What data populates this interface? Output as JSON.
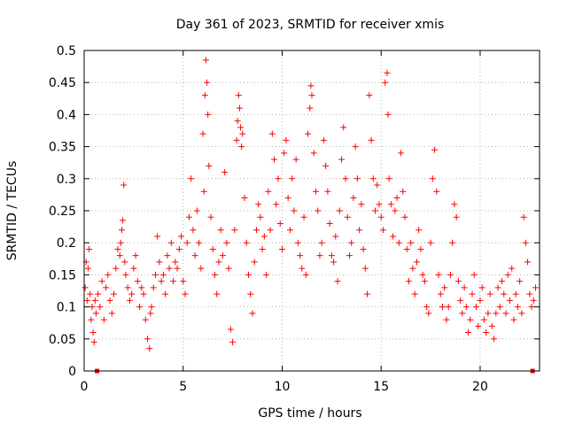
{
  "chart_data": {
    "type": "scatter",
    "title": "Day 361 of 2023, SRMTID for receiver xmis",
    "xlabel": "GPS time / hours",
    "ylabel": "SRMTID / TECUs",
    "xlim": [
      0,
      23
    ],
    "ylim": [
      0,
      0.5
    ],
    "xticks": [
      0,
      5,
      10,
      15,
      20
    ],
    "yticks": [
      0,
      0.05,
      0.1,
      0.15,
      0.2,
      0.25,
      0.3,
      0.35,
      0.4,
      0.45,
      0.5
    ],
    "xtick_labels": [
      "0",
      "5",
      "10",
      "15",
      "20"
    ],
    "ytick_labels": [
      "0",
      "0.05",
      "0.1",
      "0.15",
      "0.2",
      "0.25",
      "0.3",
      "0.35",
      "0.4",
      "0.45",
      "0.5"
    ],
    "grid": true,
    "marker": "plus",
    "series_color": "#ff0000",
    "baseline_markers": {
      "style": "filled-square",
      "points": [
        [
          0.65,
          0
        ],
        [
          22.65,
          0
        ]
      ]
    },
    "series": [
      {
        "name": "SRMTID",
        "points": [
          [
            0.05,
            0.13
          ],
          [
            0.1,
            0.17
          ],
          [
            0.15,
            0.11
          ],
          [
            0.2,
            0.16
          ],
          [
            0.25,
            0.19
          ],
          [
            0.3,
            0.12
          ],
          [
            0.35,
            0.08
          ],
          [
            0.4,
            0.1
          ],
          [
            0.45,
            0.06
          ],
          [
            0.5,
            0.045
          ],
          [
            0.55,
            0.11
          ],
          [
            0.6,
            0.09
          ],
          [
            0.7,
            0.12
          ],
          [
            0.8,
            0.1
          ],
          [
            0.9,
            0.14
          ],
          [
            1.0,
            0.08
          ],
          [
            1.1,
            0.13
          ],
          [
            1.2,
            0.15
          ],
          [
            1.3,
            0.11
          ],
          [
            1.4,
            0.09
          ],
          [
            1.5,
            0.12
          ],
          [
            1.6,
            0.16
          ],
          [
            1.7,
            0.19
          ],
          [
            1.8,
            0.18
          ],
          [
            1.85,
            0.2
          ],
          [
            1.9,
            0.22
          ],
          [
            1.95,
            0.235
          ],
          [
            2.0,
            0.29
          ],
          [
            2.05,
            0.17
          ],
          [
            2.1,
            0.15
          ],
          [
            2.2,
            0.13
          ],
          [
            2.3,
            0.11
          ],
          [
            2.4,
            0.12
          ],
          [
            2.5,
            0.16
          ],
          [
            2.6,
            0.18
          ],
          [
            2.7,
            0.14
          ],
          [
            2.8,
            0.1
          ],
          [
            2.9,
            0.13
          ],
          [
            3.0,
            0.12
          ],
          [
            3.1,
            0.08
          ],
          [
            3.2,
            0.05
          ],
          [
            3.3,
            0.035
          ],
          [
            3.35,
            0.09
          ],
          [
            3.4,
            0.1
          ],
          [
            3.5,
            0.13
          ],
          [
            3.6,
            0.15
          ],
          [
            3.7,
            0.21
          ],
          [
            3.8,
            0.17
          ],
          [
            3.9,
            0.14
          ],
          [
            4.0,
            0.15
          ],
          [
            4.1,
            0.12
          ],
          [
            4.2,
            0.18
          ],
          [
            4.3,
            0.16
          ],
          [
            4.4,
            0.2
          ],
          [
            4.5,
            0.14
          ],
          [
            4.6,
            0.17
          ],
          [
            4.7,
            0.16
          ],
          [
            4.8,
            0.19
          ],
          [
            4.9,
            0.21
          ],
          [
            5.0,
            0.14
          ],
          [
            5.1,
            0.12
          ],
          [
            5.2,
            0.2
          ],
          [
            5.3,
            0.24
          ],
          [
            5.4,
            0.3
          ],
          [
            5.5,
            0.22
          ],
          [
            5.6,
            0.18
          ],
          [
            5.7,
            0.25
          ],
          [
            5.8,
            0.2
          ],
          [
            5.9,
            0.16
          ],
          [
            6.0,
            0.37
          ],
          [
            6.05,
            0.28
          ],
          [
            6.1,
            0.43
          ],
          [
            6.15,
            0.485
          ],
          [
            6.2,
            0.45
          ],
          [
            6.25,
            0.4
          ],
          [
            6.3,
            0.32
          ],
          [
            6.4,
            0.24
          ],
          [
            6.5,
            0.19
          ],
          [
            6.6,
            0.15
          ],
          [
            6.7,
            0.12
          ],
          [
            6.8,
            0.17
          ],
          [
            6.9,
            0.22
          ],
          [
            7.0,
            0.18
          ],
          [
            7.1,
            0.31
          ],
          [
            7.2,
            0.2
          ],
          [
            7.3,
            0.16
          ],
          [
            7.4,
            0.065
          ],
          [
            7.5,
            0.045
          ],
          [
            7.6,
            0.22
          ],
          [
            7.7,
            0.36
          ],
          [
            7.75,
            0.39
          ],
          [
            7.8,
            0.43
          ],
          [
            7.85,
            0.41
          ],
          [
            7.9,
            0.38
          ],
          [
            7.95,
            0.35
          ],
          [
            8.0,
            0.37
          ],
          [
            8.1,
            0.27
          ],
          [
            8.2,
            0.2
          ],
          [
            8.3,
            0.15
          ],
          [
            8.4,
            0.12
          ],
          [
            8.5,
            0.09
          ],
          [
            8.6,
            0.17
          ],
          [
            8.7,
            0.22
          ],
          [
            8.8,
            0.26
          ],
          [
            8.9,
            0.24
          ],
          [
            9.0,
            0.19
          ],
          [
            9.1,
            0.21
          ],
          [
            9.2,
            0.15
          ],
          [
            9.3,
            0.28
          ],
          [
            9.4,
            0.22
          ],
          [
            9.5,
            0.37
          ],
          [
            9.6,
            0.33
          ],
          [
            9.7,
            0.26
          ],
          [
            9.8,
            0.3
          ],
          [
            9.9,
            0.23
          ],
          [
            10.0,
            0.19
          ],
          [
            10.1,
            0.34
          ],
          [
            10.2,
            0.36
          ],
          [
            10.3,
            0.27
          ],
          [
            10.4,
            0.22
          ],
          [
            10.5,
            0.3
          ],
          [
            10.6,
            0.25
          ],
          [
            10.7,
            0.33
          ],
          [
            10.8,
            0.2
          ],
          [
            10.9,
            0.18
          ],
          [
            11.0,
            0.16
          ],
          [
            11.1,
            0.24
          ],
          [
            11.2,
            0.15
          ],
          [
            11.3,
            0.37
          ],
          [
            11.4,
            0.41
          ],
          [
            11.45,
            0.445
          ],
          [
            11.5,
            0.43
          ],
          [
            11.6,
            0.34
          ],
          [
            11.7,
            0.28
          ],
          [
            11.8,
            0.25
          ],
          [
            11.9,
            0.18
          ],
          [
            12.0,
            0.2
          ],
          [
            12.1,
            0.36
          ],
          [
            12.2,
            0.32
          ],
          [
            12.3,
            0.28
          ],
          [
            12.4,
            0.23
          ],
          [
            12.5,
            0.18
          ],
          [
            12.6,
            0.17
          ],
          [
            12.7,
            0.21
          ],
          [
            12.8,
            0.14
          ],
          [
            12.9,
            0.25
          ],
          [
            13.0,
            0.33
          ],
          [
            13.1,
            0.38
          ],
          [
            13.2,
            0.3
          ],
          [
            13.3,
            0.24
          ],
          [
            13.4,
            0.18
          ],
          [
            13.5,
            0.2
          ],
          [
            13.6,
            0.27
          ],
          [
            13.7,
            0.35
          ],
          [
            13.8,
            0.3
          ],
          [
            13.9,
            0.22
          ],
          [
            14.0,
            0.26
          ],
          [
            14.1,
            0.19
          ],
          [
            14.2,
            0.16
          ],
          [
            14.3,
            0.12
          ],
          [
            14.4,
            0.43
          ],
          [
            14.5,
            0.36
          ],
          [
            14.6,
            0.3
          ],
          [
            14.7,
            0.25
          ],
          [
            14.8,
            0.29
          ],
          [
            14.9,
            0.26
          ],
          [
            15.0,
            0.24
          ],
          [
            15.1,
            0.22
          ],
          [
            15.2,
            0.45
          ],
          [
            15.3,
            0.465
          ],
          [
            15.35,
            0.4
          ],
          [
            15.4,
            0.3
          ],
          [
            15.5,
            0.26
          ],
          [
            15.6,
            0.21
          ],
          [
            15.7,
            0.25
          ],
          [
            15.8,
            0.27
          ],
          [
            15.9,
            0.2
          ],
          [
            16.0,
            0.34
          ],
          [
            16.1,
            0.28
          ],
          [
            16.2,
            0.24
          ],
          [
            16.3,
            0.19
          ],
          [
            16.4,
            0.14
          ],
          [
            16.5,
            0.2
          ],
          [
            16.6,
            0.16
          ],
          [
            16.7,
            0.12
          ],
          [
            16.8,
            0.17
          ],
          [
            16.9,
            0.22
          ],
          [
            17.0,
            0.19
          ],
          [
            17.1,
            0.15
          ],
          [
            17.2,
            0.14
          ],
          [
            17.3,
            0.1
          ],
          [
            17.4,
            0.09
          ],
          [
            17.5,
            0.2
          ],
          [
            17.6,
            0.3
          ],
          [
            17.7,
            0.345
          ],
          [
            17.8,
            0.28
          ],
          [
            17.9,
            0.15
          ],
          [
            18.0,
            0.12
          ],
          [
            18.1,
            0.1
          ],
          [
            18.2,
            0.13
          ],
          [
            18.3,
            0.08
          ],
          [
            18.4,
            0.1
          ],
          [
            18.5,
            0.15
          ],
          [
            18.6,
            0.2
          ],
          [
            18.7,
            0.26
          ],
          [
            18.8,
            0.24
          ],
          [
            18.9,
            0.14
          ],
          [
            19.0,
            0.11
          ],
          [
            19.1,
            0.09
          ],
          [
            19.2,
            0.13
          ],
          [
            19.3,
            0.1
          ],
          [
            19.4,
            0.06
          ],
          [
            19.5,
            0.08
          ],
          [
            19.6,
            0.12
          ],
          [
            19.7,
            0.15
          ],
          [
            19.8,
            0.1
          ],
          [
            19.9,
            0.07
          ],
          [
            20.0,
            0.11
          ],
          [
            20.1,
            0.13
          ],
          [
            20.2,
            0.08
          ],
          [
            20.3,
            0.06
          ],
          [
            20.4,
            0.09
          ],
          [
            20.5,
            0.12
          ],
          [
            20.6,
            0.07
          ],
          [
            20.7,
            0.05
          ],
          [
            20.8,
            0.09
          ],
          [
            20.9,
            0.13
          ],
          [
            21.0,
            0.1
          ],
          [
            21.1,
            0.14
          ],
          [
            21.2,
            0.12
          ],
          [
            21.3,
            0.09
          ],
          [
            21.4,
            0.15
          ],
          [
            21.5,
            0.11
          ],
          [
            21.6,
            0.16
          ],
          [
            21.7,
            0.08
          ],
          [
            21.8,
            0.12
          ],
          [
            21.9,
            0.1
          ],
          [
            22.0,
            0.14
          ],
          [
            22.1,
            0.09
          ],
          [
            22.2,
            0.24
          ],
          [
            22.3,
            0.2
          ],
          [
            22.4,
            0.17
          ],
          [
            22.5,
            0.12
          ],
          [
            22.6,
            0.1
          ],
          [
            22.7,
            0.11
          ],
          [
            22.8,
            0.13
          ]
        ]
      }
    ]
  }
}
